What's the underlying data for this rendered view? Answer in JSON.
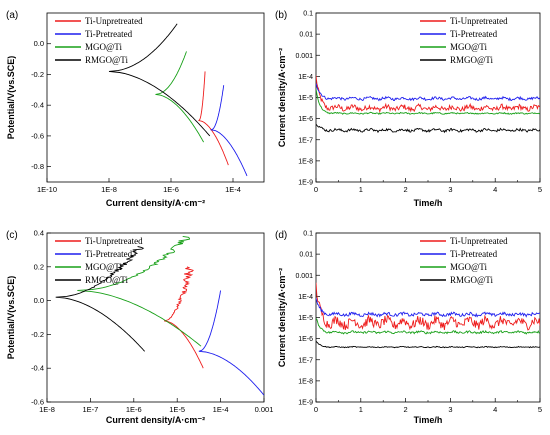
{
  "chart_data": [
    {
      "panel_label": "(a)",
      "type": "line",
      "xlabel": "Current density/A·cm⁻²",
      "ylabel": "Potential/V(vs.SCE)",
      "xscale": "log",
      "xlim": [
        1e-10,
        0.001
      ],
      "ylim": [
        -0.9,
        0.2
      ],
      "x_ticks": [
        "1E-10",
        "1E-8",
        "1E-6",
        "1E-4"
      ],
      "y_ticks": [
        "0.0",
        "-0.2",
        "-0.4",
        "-0.6",
        "-0.8"
      ],
      "legend_position": "top-left",
      "series": [
        {
          "name": "Ti-Unpretreated",
          "color": "#ee1c1c",
          "kind": "tafel",
          "e_corr": -0.5,
          "log_i_corr": -5.1,
          "cathodic_end": -0.79,
          "cathodic_end_log_i": -4.15,
          "anodic_end": -0.18,
          "anodic_end_log_i": -4.9
        },
        {
          "name": "Ti-Pretreated",
          "color": "#1f1fee",
          "kind": "tafel",
          "e_corr": -0.56,
          "log_i_corr": -4.7,
          "cathodic_end": -0.86,
          "cathodic_end_log_i": -3.55,
          "anodic_end": -0.27,
          "anodic_end_log_i": -4.3
        },
        {
          "name": "MGO@Ti",
          "color": "#18a018",
          "kind": "tafel",
          "e_corr": -0.33,
          "log_i_corr": -6.5,
          "cathodic_end": -0.64,
          "cathodic_end_log_i": -4.95,
          "anodic_end": -0.05,
          "anodic_end_log_i": -5.5
        },
        {
          "name": "RMGO@Ti",
          "color": "#000000",
          "kind": "tafel",
          "e_corr": -0.18,
          "log_i_corr": -8.0,
          "cathodic_end": -0.6,
          "cathodic_end_log_i": -4.75,
          "anodic_end": 0.13,
          "anodic_end_log_i": -5.8
        }
      ]
    },
    {
      "panel_label": "(b)",
      "type": "line",
      "xlabel": "Time/h",
      "ylabel": "Current density/A·cm⁻²",
      "yscale": "log",
      "xlim": [
        0,
        5
      ],
      "ylim": [
        1e-09,
        0.1
      ],
      "x_ticks": [
        "0",
        "1",
        "2",
        "3",
        "4",
        "5"
      ],
      "y_ticks": [
        "0.1",
        "0.01",
        "0.001",
        "1E-4",
        "1E-5",
        "1E-6",
        "1E-7",
        "1E-8",
        "1E-9"
      ],
      "legend_position": "top-right",
      "series": [
        {
          "name": "Ti-Unpretreated",
          "color": "#ee1c1c",
          "kind": "time",
          "steady_log": -5.5,
          "spike_log": -4.0,
          "noise": 0.12
        },
        {
          "name": "Ti-Pretreated",
          "color": "#1f1fee",
          "kind": "time",
          "steady_log": -5.05,
          "spike_log": -4.3,
          "noise": 0.06
        },
        {
          "name": "MGO@Ti",
          "color": "#18a018",
          "kind": "time",
          "steady_log": -5.75,
          "spike_log": -4.6,
          "noise": 0.03
        },
        {
          "name": "RMGO@Ti",
          "color": "#000000",
          "kind": "time",
          "steady_log": -6.55,
          "spike_log": -6.2,
          "noise": 0.06
        }
      ]
    },
    {
      "panel_label": "(c)",
      "type": "line",
      "xlabel": "Current density/A·cm⁻²",
      "ylabel": "Potential/V(vs.SCE)",
      "xscale": "log",
      "xlim": [
        1e-08,
        0.001
      ],
      "ylim": [
        -0.6,
        0.4
      ],
      "x_ticks": [
        "1E-8",
        "1E-7",
        "1E-6",
        "1E-5",
        "1E-4",
        "0.001"
      ],
      "y_ticks": [
        "0.4",
        "0.2",
        "0.0",
        "-0.2",
        "-0.4",
        "-0.6"
      ],
      "legend_position": "top-left",
      "series": [
        {
          "name": "Ti-Unpretreated",
          "color": "#ee1c1c",
          "kind": "tafel",
          "e_corr": -0.12,
          "log_i_corr": -5.3,
          "cathodic_end": -0.4,
          "cathodic_end_log_i": -4.4,
          "anodic_end": 0.2,
          "anodic_end_log_i": -4.7
        },
        {
          "name": "Ti-Pretreated",
          "color": "#1f1fee",
          "kind": "tafel",
          "e_corr": -0.3,
          "log_i_corr": -4.5,
          "cathodic_end": -0.56,
          "cathodic_end_log_i": -3.0,
          "anodic_end": 0.06,
          "anodic_end_log_i": -4.0
        },
        {
          "name": "MGO@Ti",
          "color": "#18a018",
          "kind": "tafel",
          "e_corr": 0.06,
          "log_i_corr": -7.3,
          "cathodic_end": -0.27,
          "cathodic_end_log_i": -4.45,
          "anodic_end": 0.38,
          "anodic_end_log_i": -4.75
        },
        {
          "name": "RMGO@Ti",
          "color": "#000000",
          "kind": "tafel",
          "e_corr": 0.02,
          "log_i_corr": -7.8,
          "cathodic_end": -0.3,
          "cathodic_end_log_i": -5.75,
          "anodic_end": 0.32,
          "anodic_end_log_i": -5.85
        }
      ]
    },
    {
      "panel_label": "(d)",
      "type": "line",
      "xlabel": "Time/h",
      "ylabel": "Current density/A·cm⁻²",
      "yscale": "log",
      "xlim": [
        0,
        5
      ],
      "ylim": [
        1e-09,
        0.1
      ],
      "x_ticks": [
        "0",
        "1",
        "2",
        "3",
        "4",
        "5"
      ],
      "y_ticks": [
        "0.1",
        "0.01",
        "0.001",
        "1E-4",
        "1E-5",
        "1E-6",
        "1E-7",
        "1E-8",
        "1E-9"
      ],
      "legend_position": "top-right",
      "series": [
        {
          "name": "Ti-Unpretreated",
          "color": "#ee1c1c",
          "kind": "time",
          "steady_log": -5.25,
          "spike_log": -3.5,
          "noise": 0.22
        },
        {
          "name": "Ti-Pretreated",
          "color": "#1f1fee",
          "kind": "time",
          "steady_log": -4.85,
          "spike_log": -4.1,
          "noise": 0.07
        },
        {
          "name": "MGO@Ti",
          "color": "#18a018",
          "kind": "time",
          "steady_log": -5.7,
          "spike_log": -5.0,
          "noise": 0.05
        },
        {
          "name": "RMGO@Ti",
          "color": "#000000",
          "kind": "time",
          "steady_log": -6.4,
          "spike_log": -6.1,
          "noise": 0.02
        }
      ]
    }
  ]
}
